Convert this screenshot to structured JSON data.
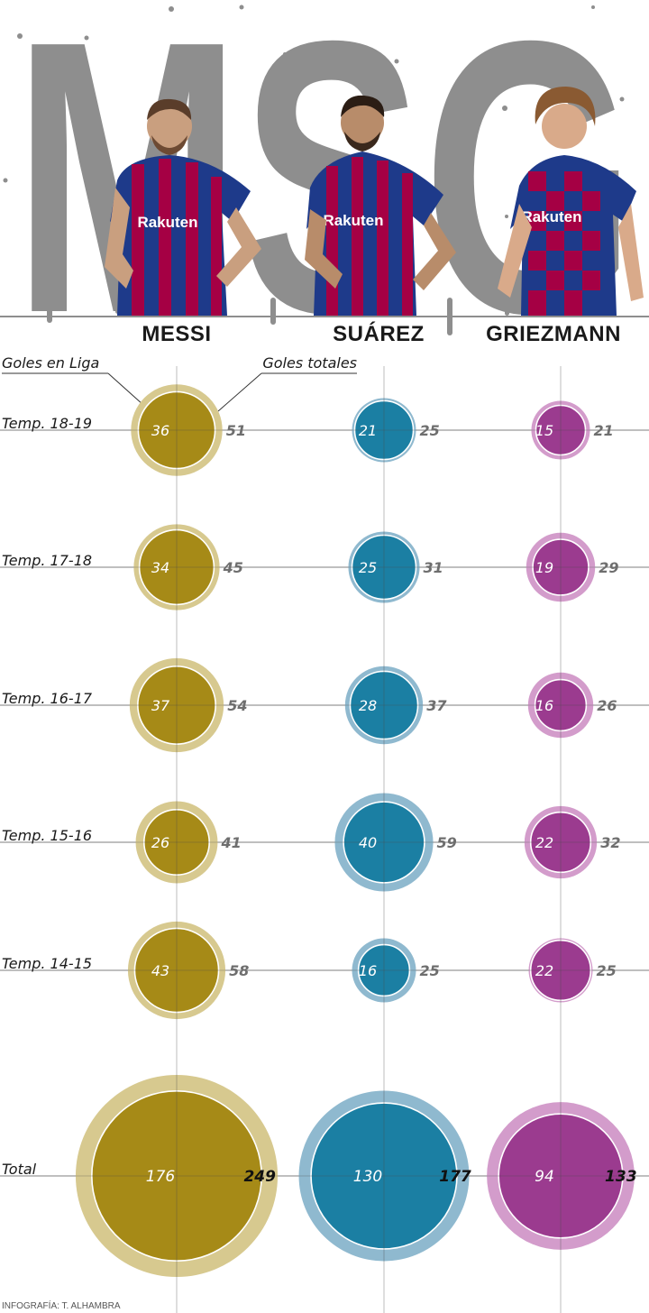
{
  "header": {
    "big_title": "MSG",
    "players": [
      {
        "name": "MESSI",
        "sponsor": "Rakuten"
      },
      {
        "name": "SUÁREZ",
        "sponsor": "Rakuten"
      },
      {
        "name": "GRIEZMANN",
        "sponsor": "Rakuten"
      }
    ]
  },
  "legend": {
    "inner": "Goles en Liga",
    "outer": "Goles totales"
  },
  "credit": "INFOGRAFÍA: T. ALHAMBRA",
  "colors": {
    "messi": "#a68a17",
    "messi_outer": "#d7c98f",
    "suarez": "#1b7fa3",
    "suarez_outer": "#8fb9cf",
    "griezmann": "#9b3b8f",
    "griezmann_outer": "#d39ccb",
    "title_gray": "#8e8e8e"
  },
  "chart_data": {
    "type": "bubble",
    "title": "MSG",
    "categories": [
      "Temp. 18-19",
      "Temp. 17-18",
      "Temp. 16-17",
      "Temp. 15-16",
      "Temp. 14-15",
      "Total"
    ],
    "series": [
      {
        "name": "MESSI",
        "league_goals": [
          36,
          34,
          37,
          26,
          43,
          176
        ],
        "total_goals": [
          51,
          45,
          54,
          41,
          58,
          249
        ]
      },
      {
        "name": "SUÁREZ",
        "league_goals": [
          21,
          25,
          28,
          40,
          16,
          130
        ],
        "total_goals": [
          25,
          31,
          37,
          59,
          25,
          177
        ]
      },
      {
        "name": "GRIEZMANN",
        "league_goals": [
          15,
          19,
          16,
          22,
          22,
          94
        ],
        "total_goals": [
          21,
          29,
          26,
          32,
          25,
          133
        ]
      }
    ],
    "legend": [
      "Goles en Liga",
      "Goles totales"
    ]
  }
}
